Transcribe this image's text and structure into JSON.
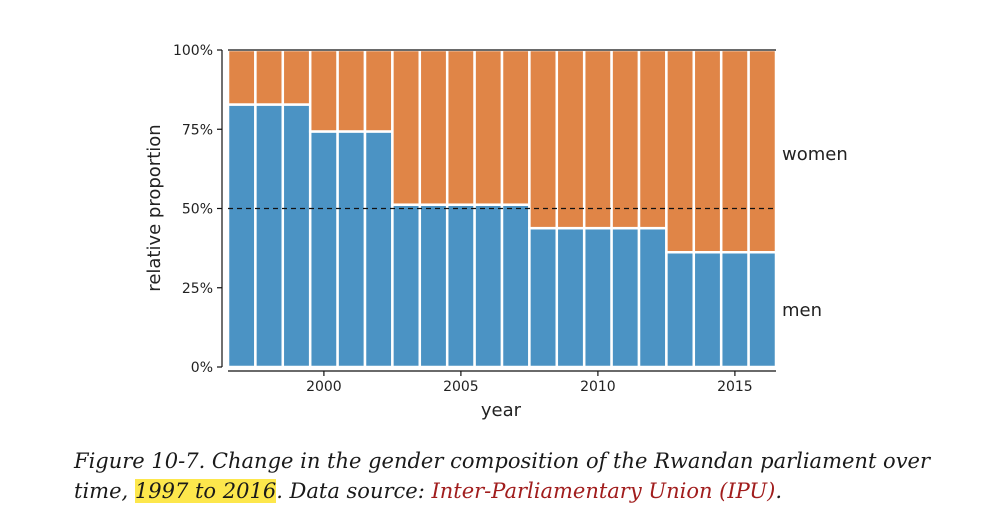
{
  "chart_data": {
    "type": "bar",
    "stacked": true,
    "categories": [
      1997,
      1998,
      1999,
      2000,
      2001,
      2002,
      2003,
      2004,
      2005,
      2006,
      2007,
      2008,
      2009,
      2010,
      2011,
      2012,
      2013,
      2014,
      2015,
      2016
    ],
    "series": [
      {
        "name": "men",
        "color": "#4b93c4",
        "values": [
          0.828,
          0.828,
          0.828,
          0.743,
          0.743,
          0.743,
          0.512,
          0.512,
          0.512,
          0.512,
          0.512,
          0.438,
          0.438,
          0.438,
          0.438,
          0.438,
          0.362,
          0.362,
          0.362,
          0.362
        ]
      },
      {
        "name": "women",
        "color": "#e08547",
        "values": [
          0.172,
          0.172,
          0.172,
          0.257,
          0.257,
          0.257,
          0.488,
          0.488,
          0.488,
          0.488,
          0.488,
          0.562,
          0.562,
          0.562,
          0.562,
          0.562,
          0.638,
          0.638,
          0.638,
          0.638
        ]
      }
    ],
    "xlabel": "year",
    "ylabel": "relative proportion",
    "ylim": [
      0,
      1
    ],
    "yticks": [
      0,
      0.25,
      0.5,
      0.75,
      1
    ],
    "ytick_labels": [
      "0%",
      "25%",
      "50%",
      "75%",
      "100%"
    ],
    "xticks": [
      2000,
      2005,
      2010,
      2015
    ],
    "xtick_labels": [
      "2000",
      "2005",
      "2010",
      "2015"
    ],
    "reference_line": 0.5,
    "grid": false,
    "legend": "direct labels on right"
  },
  "caption": {
    "part1": "Figure 10-7. Change in the gender composition of the Rwandan parliament over time, ",
    "highlight": "1997 to 2016",
    "part2": ". Data source: ",
    "link": "Inter-Parliamentary Union (IPU)",
    "part3": "."
  }
}
